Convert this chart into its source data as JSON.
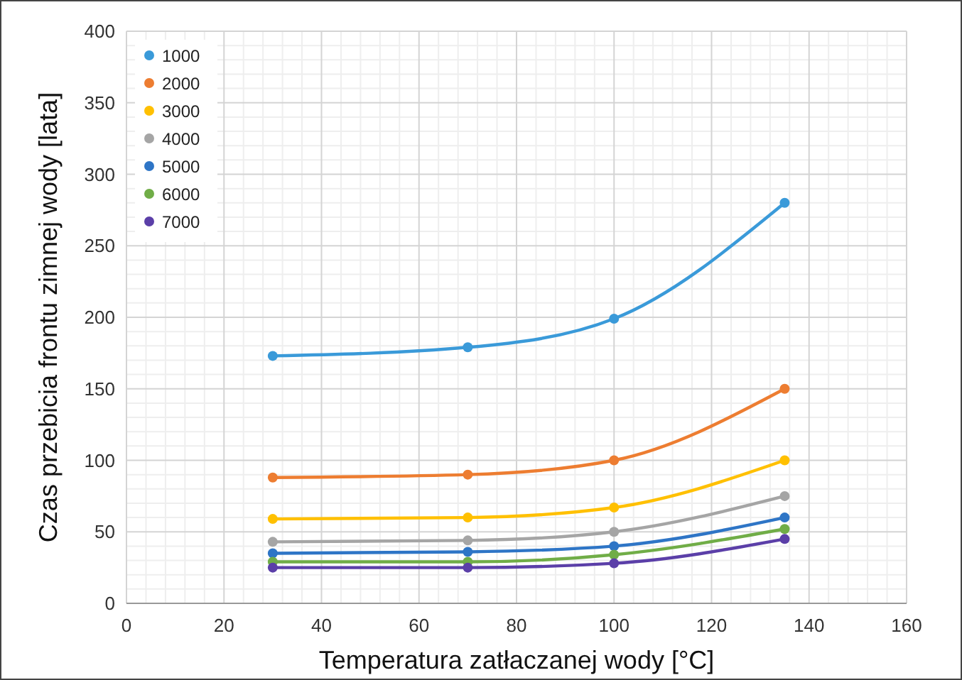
{
  "chart_data": {
    "type": "line",
    "xlabel": "Temperatura zatłaczanej wody [°C]",
    "ylabel": "Czas przebicia frontu zimnej wody [lata]",
    "x": [
      30,
      70,
      100,
      135
    ],
    "xlim": [
      0,
      160
    ],
    "xticks": [
      0,
      20,
      40,
      60,
      80,
      100,
      120,
      140,
      160
    ],
    "ylim": [
      0,
      400
    ],
    "yticks": [
      0,
      50,
      100,
      150,
      200,
      250,
      300,
      350,
      400
    ],
    "grid": true,
    "legend": "top left",
    "marker": "circle",
    "line_style": "solid",
    "series": [
      {
        "name": "1000",
        "color": "#3a9ad9",
        "values": [
          173,
          179,
          199,
          280
        ]
      },
      {
        "name": "2000",
        "color": "#ed7d31",
        "values": [
          88,
          90,
          100,
          150
        ]
      },
      {
        "name": "3000",
        "color": "#ffc000",
        "values": [
          59,
          60,
          67,
          100
        ]
      },
      {
        "name": "4000",
        "color": "#a5a5a5",
        "values": [
          43,
          44,
          50,
          75
        ]
      },
      {
        "name": "5000",
        "color": "#2e75c6",
        "values": [
          35,
          36,
          40,
          60
        ]
      },
      {
        "name": "6000",
        "color": "#70ad47",
        "values": [
          29,
          29,
          34,
          52
        ]
      },
      {
        "name": "7000",
        "color": "#5b3fa8",
        "values": [
          25,
          25,
          28,
          45
        ]
      }
    ]
  }
}
